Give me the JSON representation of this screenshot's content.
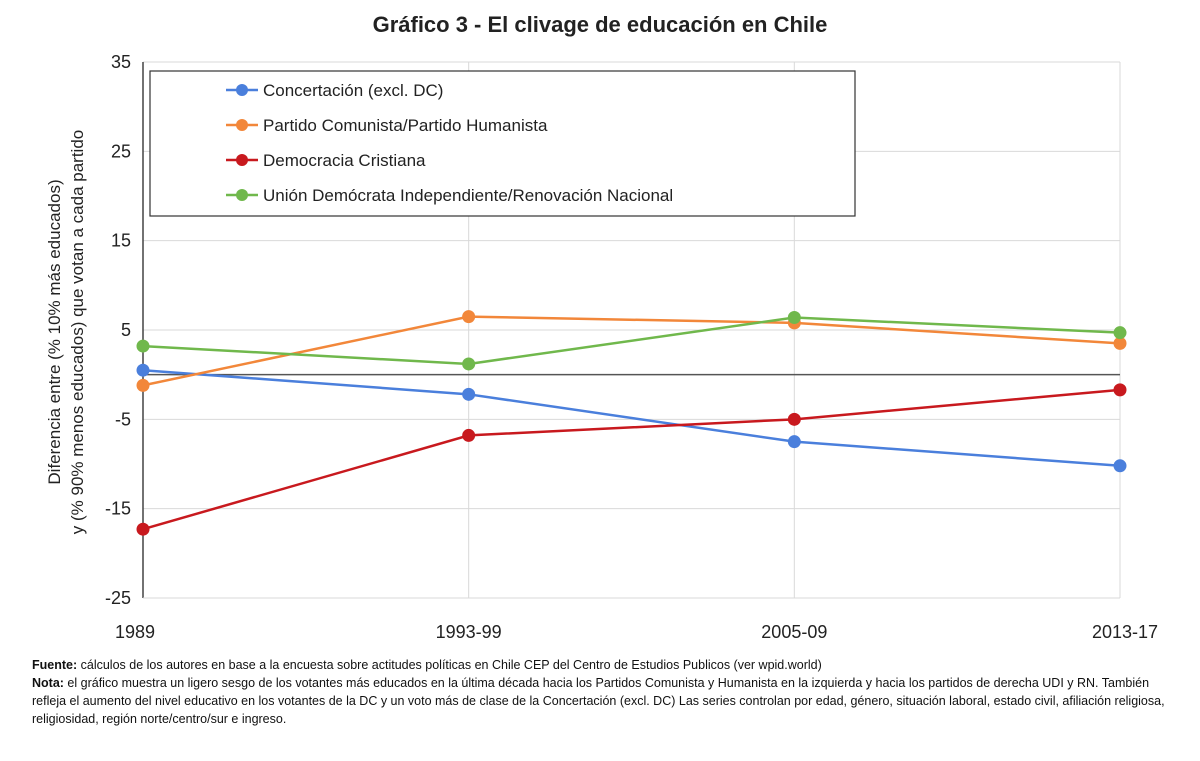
{
  "chart_data": {
    "type": "line",
    "title": "Gráfico 3 - El clivage de educación en Chile",
    "ylabel_line1": "Diferencia entre (% 10% más educados)",
    "ylabel_line2": "y (% 90% menos educados) que votan a cada partido",
    "categories": [
      "1989",
      "1993-99",
      "2005-09",
      "2013-17"
    ],
    "ylim": [
      -25,
      35
    ],
    "yticks": [
      35,
      25,
      15,
      5,
      -5,
      -15,
      -25
    ],
    "grid": true,
    "legend_position": "top-left",
    "series": [
      {
        "name": "Concertación (excl. DC)",
        "color": "#4a7fdc",
        "values": [
          0.5,
          -2.2,
          -7.5,
          -10.2
        ]
      },
      {
        "name": "Partido Comunista/Partido Humanista",
        "color": "#f2873a",
        "values": [
          -1.2,
          6.5,
          5.8,
          3.5
        ]
      },
      {
        "name": "Democracia Cristiana",
        "color": "#c8191e",
        "values": [
          -17.3,
          -6.8,
          -5.0,
          -1.7
        ]
      },
      {
        "name": "Unión Demócrata Independiente/Renovación Nacional",
        "color": "#70b84c",
        "values": [
          3.2,
          1.2,
          6.4,
          4.7
        ]
      }
    ]
  },
  "notes": {
    "fuente_label": "Fuente:",
    "fuente_text": " cálculos de los autores en base a la encuesta sobre actitudes políticas en Chile CEP del Centro de Estudios Publicos (ver wpid.world)",
    "nota_label": "Nota:",
    "nota_text": " el gráfico muestra un ligero sesgo de los votantes más educados en la última década hacia los Partidos Comunista y Humanista en la izquierda y hacia los partidos de derecha UDI y RN. También refleja el aumento del nivel educativo en los votantes de la DC y un voto más de clase de la Concertación (excl. DC) Las series controlan por edad, género, situación laboral, estado civil, afiliación religiosa, religiosidad, región norte/centro/sur e ingreso."
  }
}
